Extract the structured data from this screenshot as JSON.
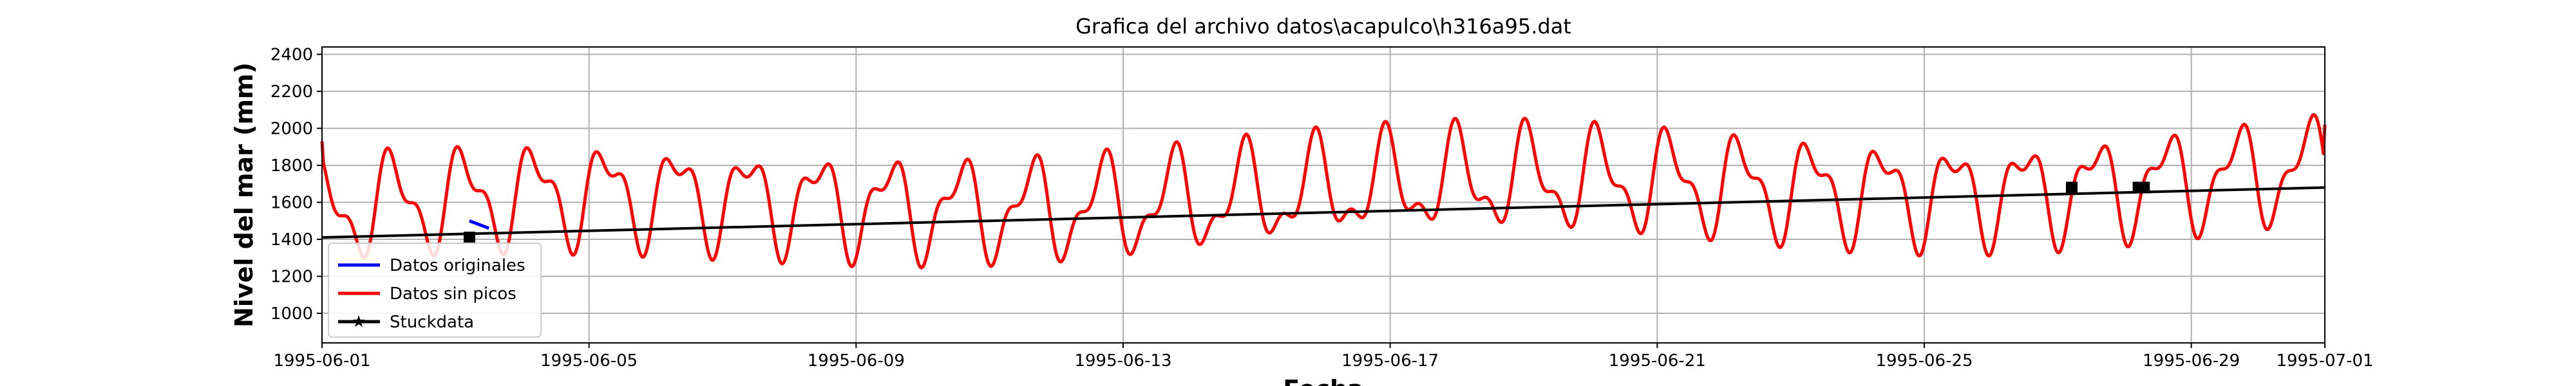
{
  "chart_data": {
    "type": "line",
    "title": "Grafica del archivo datos\\acapulco\\h316a95.dat",
    "xlabel": "Fecha",
    "ylabel": "Nivel del mar (mm)",
    "xlim": [
      "1995-06-01",
      "1995-07-01"
    ],
    "ylim": [
      840,
      2440
    ],
    "yticks": [
      1000,
      1200,
      1400,
      1600,
      1800,
      2000,
      2200,
      2400
    ],
    "xticks": [
      "1995-06-01",
      "1995-06-05",
      "1995-06-09",
      "1995-06-13",
      "1995-06-17",
      "1995-06-21",
      "1995-06-25",
      "1995-06-29",
      "1995-07-01"
    ],
    "grid": true,
    "legend": {
      "placement": "lower-left",
      "entries": [
        {
          "label": "Datos originales",
          "color": "#0000ff",
          "marker": "none"
        },
        {
          "label": "Datos sin picos",
          "color": "#ff0000",
          "marker": "none"
        },
        {
          "label": "Stuckdata",
          "color": "#000000",
          "marker": "star"
        }
      ]
    },
    "series": [
      {
        "name": "Datos originales",
        "color": "#0000ff",
        "x": [
          "1995-06-03 05:00",
          "1995-06-03 12:00"
        ],
        "y": [
          1500,
          1460
        ]
      },
      {
        "name": "Datos sin picos",
        "color": "#ff0000",
        "x": [
          "1995-06-01 00:00",
          "1995-07-01 00:00"
        ],
        "y": [
          1930,
          2020
        ],
        "tide": {
          "mean_start": 1560,
          "mean_end": 1740,
          "diurnal_amp": 230,
          "semidiurnal_amp": 110
        }
      },
      {
        "name": "Stuckdata",
        "color": "#000000",
        "x": [
          "1995-06-01 00:00",
          "1995-07-01 00:00"
        ],
        "y": [
          1410,
          1680
        ],
        "markers": [
          {
            "x": "1995-06-03 05:00",
            "y": 1410
          },
          {
            "x": "1995-06-27 05:00",
            "y": 1680
          },
          {
            "x": "1995-06-28 05:00",
            "y": 1680
          },
          {
            "x": "1995-06-28 07:00",
            "y": 1680
          }
        ]
      }
    ]
  }
}
